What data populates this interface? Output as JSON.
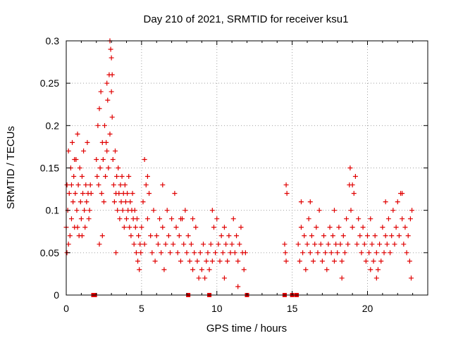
{
  "chart_data": {
    "type": "scatter",
    "title": "Day 210 of 2021, SRMTID for receiver ksu1",
    "xlabel": "GPS time / hours",
    "ylabel": "SRMTID / TECUs",
    "xlim": [
      0,
      24
    ],
    "ylim": [
      0,
      0.3
    ],
    "grid": true,
    "marker": "+",
    "color": "#e00000",
    "x_ticks": [
      0,
      5,
      10,
      15,
      20
    ],
    "x_tick_labels": [
      "0",
      "5",
      "10",
      "15",
      "20"
    ],
    "y_ticks": [
      0,
      0.05,
      0.1,
      0.15,
      0.2,
      0.25,
      0.3
    ],
    "y_tick_labels": [
      "0",
      "0.05",
      "0.1",
      "0.15",
      "0.2",
      "0.25",
      "0.3"
    ],
    "baseline_marks_x": [
      1.8,
      1.9,
      8.1,
      9.5,
      12.0,
      14.5,
      15.0,
      15.3
    ],
    "series": [
      {
        "name": "SRMTID",
        "points": [
          [
            0.0,
            0.08
          ],
          [
            0.05,
            0.13
          ],
          [
            0.1,
            0.1
          ],
          [
            0.15,
            0.17
          ],
          [
            0.2,
            0.12
          ],
          [
            0.25,
            0.07
          ],
          [
            0.3,
            0.15
          ],
          [
            0.35,
            0.09
          ],
          [
            0.4,
            0.18
          ],
          [
            0.45,
            0.11
          ],
          [
            0.5,
            0.14
          ],
          [
            0.55,
            0.08
          ],
          [
            0.6,
            0.12
          ],
          [
            0.65,
            0.16
          ],
          [
            0.7,
            0.1
          ],
          [
            0.75,
            0.19
          ],
          [
            0.8,
            0.13
          ],
          [
            0.85,
            0.07
          ],
          [
            0.9,
            0.15
          ],
          [
            0.95,
            0.11
          ],
          [
            1.0,
            0.09
          ],
          [
            1.05,
            0.14
          ],
          [
            1.1,
            0.12
          ],
          [
            1.15,
            0.17
          ],
          [
            1.2,
            0.1
          ],
          [
            1.25,
            0.08
          ],
          [
            1.3,
            0.13
          ],
          [
            1.35,
            0.11
          ],
          [
            1.4,
            0.18
          ],
          [
            1.45,
            0.12
          ],
          [
            1.5,
            0.09
          ],
          [
            1.55,
            0.1
          ],
          [
            1.6,
            0.13
          ],
          [
            1.65,
            0.12
          ],
          [
            0.05,
            0.05
          ],
          [
            0.15,
            0.06
          ],
          [
            0.35,
            0.13
          ],
          [
            0.55,
            0.16
          ],
          [
            0.75,
            0.08
          ],
          [
            1.05,
            0.07
          ],
          [
            2.0,
            0.16
          ],
          [
            2.05,
            0.14
          ],
          [
            2.1,
            0.2
          ],
          [
            2.15,
            0.13
          ],
          [
            2.2,
            0.22
          ],
          [
            2.25,
            0.15
          ],
          [
            2.3,
            0.24
          ],
          [
            2.35,
            0.12
          ],
          [
            2.4,
            0.18
          ],
          [
            2.45,
            0.16
          ],
          [
            2.5,
            0.11
          ],
          [
            2.55,
            0.2
          ],
          [
            2.6,
            0.14
          ],
          [
            2.65,
            0.18
          ],
          [
            2.7,
            0.17
          ],
          [
            2.75,
            0.23
          ],
          [
            2.8,
            0.15
          ],
          [
            2.85,
            0.26
          ],
          [
            2.9,
            0.19
          ],
          [
            2.95,
            0.29
          ],
          [
            3.0,
            0.24
          ],
          [
            3.05,
            0.21
          ],
          [
            3.1,
            0.16
          ],
          [
            3.15,
            0.13
          ],
          [
            3.2,
            0.11
          ],
          [
            3.25,
            0.17
          ],
          [
            3.3,
            0.12
          ],
          [
            3.35,
            0.14
          ],
          [
            3.4,
            0.1
          ],
          [
            3.45,
            0.15
          ],
          [
            3.5,
            0.12
          ],
          [
            3.55,
            0.09
          ],
          [
            3.6,
            0.13
          ],
          [
            3.65,
            0.11
          ],
          [
            3.7,
            0.14
          ],
          [
            3.75,
            0.1
          ],
          [
            3.8,
            0.12
          ],
          [
            3.85,
            0.08
          ],
          [
            3.9,
            0.13
          ],
          [
            3.95,
            0.11
          ],
          [
            4.0,
            0.09
          ],
          [
            4.05,
            0.12
          ],
          [
            4.1,
            0.1
          ],
          [
            4.15,
            0.14
          ],
          [
            4.2,
            0.08
          ],
          [
            4.25,
            0.11
          ],
          [
            4.3,
            0.07
          ],
          [
            4.35,
            0.1
          ],
          [
            4.4,
            0.12
          ],
          [
            4.45,
            0.09
          ],
          [
            4.5,
            0.06
          ],
          [
            4.55,
            0.1
          ],
          [
            4.6,
            0.08
          ],
          [
            4.65,
            0.05
          ],
          [
            4.7,
            0.09
          ],
          [
            4.75,
            0.04
          ],
          [
            4.8,
            0.07
          ],
          [
            4.85,
            0.03
          ],
          [
            4.9,
            0.06
          ],
          [
            4.95,
            0.05
          ],
          [
            2.9,
            0.3
          ],
          [
            3.0,
            0.28
          ],
          [
            3.05,
            0.26
          ],
          [
            2.7,
            0.25
          ],
          [
            2.4,
            0.07
          ],
          [
            3.3,
            0.05
          ],
          [
            2.2,
            0.06
          ],
          [
            5.0,
            0.08
          ],
          [
            5.1,
            0.11
          ],
          [
            5.2,
            0.06
          ],
          [
            5.3,
            0.13
          ],
          [
            5.4,
            0.09
          ],
          [
            5.5,
            0.12
          ],
          [
            5.6,
            0.07
          ],
          [
            5.7,
            0.05
          ],
          [
            5.8,
            0.1
          ],
          [
            5.9,
            0.04
          ],
          [
            6.0,
            0.07
          ],
          [
            6.1,
            0.06
          ],
          [
            6.2,
            0.09
          ],
          [
            6.3,
            0.05
          ],
          [
            6.4,
            0.08
          ],
          [
            6.5,
            0.03
          ],
          [
            6.6,
            0.06
          ],
          [
            6.7,
            0.1
          ],
          [
            6.8,
            0.07
          ],
          [
            6.9,
            0.05
          ],
          [
            7.0,
            0.09
          ],
          [
            7.1,
            0.06
          ],
          [
            7.2,
            0.12
          ],
          [
            7.3,
            0.08
          ],
          [
            7.4,
            0.05
          ],
          [
            7.5,
            0.07
          ],
          [
            7.6,
            0.04
          ],
          [
            7.7,
            0.09
          ],
          [
            7.8,
            0.06
          ],
          [
            7.9,
            0.1
          ],
          [
            8.0,
            0.05
          ],
          [
            8.1,
            0.07
          ],
          [
            8.2,
            0.04
          ],
          [
            8.3,
            0.06
          ],
          [
            8.4,
            0.03
          ],
          [
            8.5,
            0.05
          ],
          [
            8.6,
            0.08
          ],
          [
            8.7,
            0.04
          ],
          [
            8.8,
            0.02
          ],
          [
            8.9,
            0.05
          ],
          [
            9.0,
            0.03
          ],
          [
            9.1,
            0.06
          ],
          [
            9.2,
            0.02
          ],
          [
            9.3,
            0.04
          ],
          [
            9.4,
            0.05
          ],
          [
            9.5,
            0.03
          ],
          [
            9.6,
            0.06
          ],
          [
            9.7,
            0.04
          ],
          [
            9.8,
            0.08
          ],
          [
            9.9,
            0.05
          ],
          [
            10.0,
            0.09
          ],
          [
            10.1,
            0.06
          ],
          [
            10.2,
            0.04
          ],
          [
            10.3,
            0.07
          ],
          [
            10.4,
            0.05
          ],
          [
            10.5,
            0.08
          ],
          [
            10.6,
            0.06
          ],
          [
            10.7,
            0.04
          ],
          [
            10.8,
            0.07
          ],
          [
            10.9,
            0.05
          ],
          [
            11.0,
            0.06
          ],
          [
            11.1,
            0.09
          ],
          [
            11.2,
            0.05
          ],
          [
            11.3,
            0.07
          ],
          [
            11.4,
            0.04
          ],
          [
            11.5,
            0.06
          ],
          [
            11.6,
            0.08
          ],
          [
            11.7,
            0.05
          ],
          [
            11.8,
            0.03
          ],
          [
            11.9,
            0.05
          ],
          [
            5.2,
            0.16
          ],
          [
            5.4,
            0.14
          ],
          [
            6.4,
            0.13
          ],
          [
            7.6,
            0.09
          ],
          [
            8.4,
            0.09
          ],
          [
            9.7,
            0.1
          ],
          [
            11.4,
            0.01
          ],
          [
            10.5,
            0.02
          ],
          [
            14.5,
            0.06
          ],
          [
            14.55,
            0.05
          ],
          [
            14.6,
            0.13
          ],
          [
            14.65,
            0.12
          ],
          [
            14.6,
            0.04
          ],
          [
            15.4,
            0.06
          ],
          [
            15.5,
            0.04
          ],
          [
            15.6,
            0.08
          ],
          [
            15.7,
            0.05
          ],
          [
            15.8,
            0.07
          ],
          [
            15.9,
            0.03
          ],
          [
            16.0,
            0.06
          ],
          [
            16.1,
            0.09
          ],
          [
            16.2,
            0.05
          ],
          [
            16.3,
            0.07
          ],
          [
            16.4,
            0.04
          ],
          [
            16.5,
            0.06
          ],
          [
            16.6,
            0.08
          ],
          [
            16.7,
            0.05
          ],
          [
            16.8,
            0.1
          ],
          [
            16.9,
            0.06
          ],
          [
            17.0,
            0.04
          ],
          [
            17.1,
            0.07
          ],
          [
            17.2,
            0.05
          ],
          [
            17.3,
            0.03
          ],
          [
            17.4,
            0.06
          ],
          [
            17.5,
            0.08
          ],
          [
            17.6,
            0.05
          ],
          [
            17.7,
            0.07
          ],
          [
            17.8,
            0.04
          ],
          [
            17.9,
            0.06
          ],
          [
            18.0,
            0.05
          ],
          [
            18.1,
            0.08
          ],
          [
            18.2,
            0.06
          ],
          [
            18.3,
            0.04
          ],
          [
            18.4,
            0.07
          ],
          [
            18.5,
            0.05
          ],
          [
            18.6,
            0.09
          ],
          [
            18.7,
            0.06
          ],
          [
            18.8,
            0.13
          ],
          [
            18.85,
            0.15
          ],
          [
            18.9,
            0.1
          ],
          [
            19.0,
            0.08
          ],
          [
            19.1,
            0.12
          ],
          [
            19.2,
            0.14
          ],
          [
            19.3,
            0.06
          ],
          [
            19.4,
            0.09
          ],
          [
            19.5,
            0.07
          ],
          [
            19.6,
            0.05
          ],
          [
            19.7,
            0.08
          ],
          [
            19.8,
            0.06
          ],
          [
            19.9,
            0.04
          ],
          [
            20.0,
            0.07
          ],
          [
            20.1,
            0.05
          ],
          [
            20.2,
            0.03
          ],
          [
            20.3,
            0.06
          ],
          [
            20.4,
            0.04
          ],
          [
            20.5,
            0.07
          ],
          [
            20.6,
            0.05
          ],
          [
            20.7,
            0.03
          ],
          [
            20.8,
            0.06
          ],
          [
            20.9,
            0.04
          ],
          [
            21.0,
            0.08
          ],
          [
            21.1,
            0.05
          ],
          [
            21.2,
            0.07
          ],
          [
            21.3,
            0.06
          ],
          [
            21.4,
            0.09
          ],
          [
            21.5,
            0.05
          ],
          [
            21.6,
            0.07
          ],
          [
            21.7,
            0.1
          ],
          [
            21.8,
            0.06
          ],
          [
            21.9,
            0.08
          ],
          [
            22.0,
            0.11
          ],
          [
            22.1,
            0.07
          ],
          [
            22.2,
            0.12
          ],
          [
            22.3,
            0.09
          ],
          [
            22.4,
            0.06
          ],
          [
            22.5,
            0.08
          ],
          [
            22.6,
            0.05
          ],
          [
            22.7,
            0.07
          ],
          [
            22.8,
            0.04
          ],
          [
            22.85,
            0.09
          ],
          [
            22.9,
            0.02
          ],
          [
            22.95,
            0.1
          ],
          [
            16.2,
            0.11
          ],
          [
            17.8,
            0.1
          ],
          [
            19.0,
            0.13
          ],
          [
            20.2,
            0.09
          ],
          [
            21.2,
            0.11
          ],
          [
            22.3,
            0.12
          ],
          [
            15.6,
            0.11
          ],
          [
            18.3,
            0.02
          ],
          [
            20.6,
            0.02
          ]
        ]
      }
    ]
  }
}
